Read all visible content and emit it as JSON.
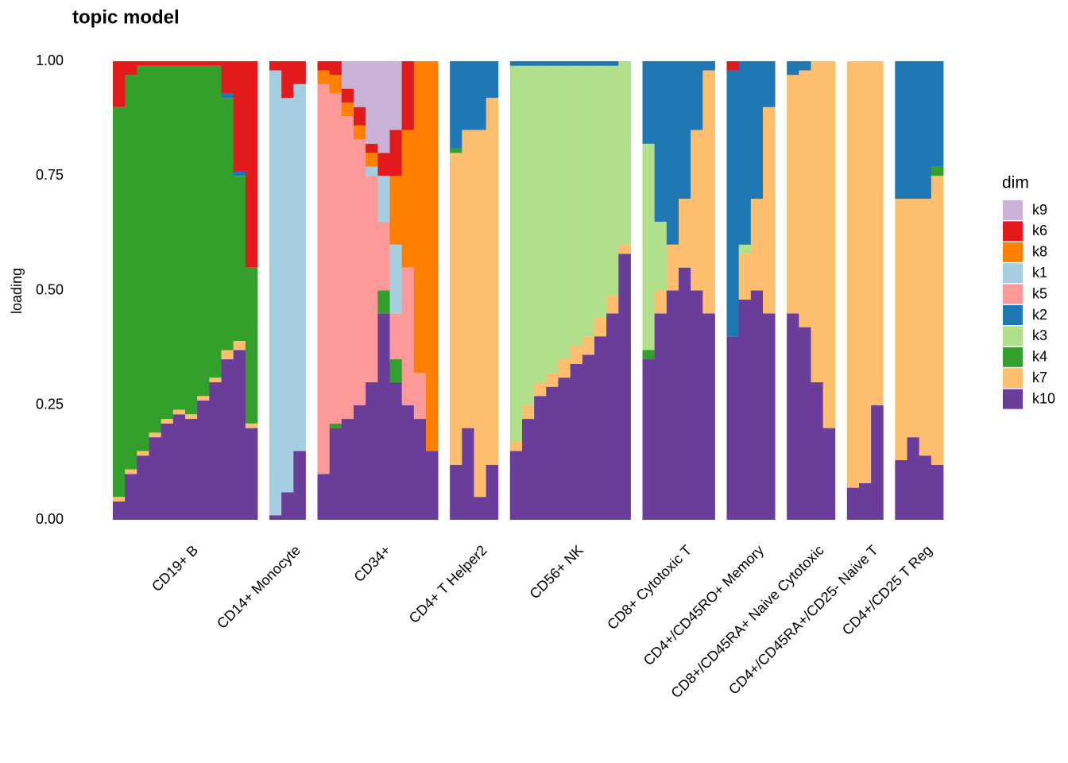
{
  "chart_data": {
    "type": "stacked_bar",
    "title": "topic model",
    "y_label": "loading",
    "legend_title": "dim",
    "ylim": [
      0,
      1
    ],
    "yticks": [
      {
        "value": 0,
        "label": "0.00"
      },
      {
        "value": 0.25,
        "label": "0.25"
      },
      {
        "value": 0.5,
        "label": "0.50"
      },
      {
        "value": 0.75,
        "label": "0.75"
      },
      {
        "value": 1,
        "label": "1.00"
      }
    ],
    "series": [
      {
        "name": "k9",
        "color": "#cab2d6"
      },
      {
        "name": "k6",
        "color": "#e31a1c"
      },
      {
        "name": "k8",
        "color": "#ff7f00"
      },
      {
        "name": "k1",
        "color": "#a6cee3"
      },
      {
        "name": "k5",
        "color": "#fb9a99"
      },
      {
        "name": "k2",
        "color": "#1f78b4"
      },
      {
        "name": "k3",
        "color": "#b2df8a"
      },
      {
        "name": "k4",
        "color": "#33a02c"
      },
      {
        "name": "k7",
        "color": "#fdbf6f"
      },
      {
        "name": "k10",
        "color": "#6a3d9a"
      }
    ],
    "groups": [
      {
        "label": "CD19+ B",
        "bars": [
          [
            0,
            0.1,
            0,
            0,
            0,
            0,
            0,
            0.85,
            0.01,
            0.04
          ],
          [
            0,
            0.03,
            0,
            0,
            0,
            0,
            0,
            0.86,
            0.01,
            0.1
          ],
          [
            0,
            0.01,
            0,
            0,
            0,
            0,
            0,
            0.84,
            0.01,
            0.14
          ],
          [
            0,
            0.01,
            0,
            0,
            0,
            0,
            0,
            0.8,
            0.01,
            0.18
          ],
          [
            0,
            0.01,
            0,
            0,
            0,
            0,
            0,
            0.77,
            0.01,
            0.21
          ],
          [
            0,
            0.01,
            0,
            0,
            0,
            0,
            0,
            0.75,
            0.01,
            0.23
          ],
          [
            0,
            0.01,
            0,
            0,
            0,
            0,
            0,
            0.76,
            0.01,
            0.22
          ],
          [
            0,
            0.01,
            0,
            0,
            0,
            0,
            0,
            0.72,
            0.01,
            0.26
          ],
          [
            0,
            0.01,
            0,
            0,
            0,
            0,
            0,
            0.68,
            0.01,
            0.3
          ],
          [
            0,
            0.07,
            0,
            0,
            0,
            0.01,
            0,
            0.55,
            0.02,
            0.35
          ],
          [
            0,
            0.24,
            0,
            0,
            0,
            0.01,
            0,
            0.36,
            0.02,
            0.37
          ],
          [
            0,
            0.45,
            0,
            0,
            0,
            0,
            0,
            0.34,
            0.01,
            0.2
          ]
        ]
      },
      {
        "label": "CD14+ Monocyte",
        "bars": [
          [
            0,
            0.02,
            0,
            0.97,
            0,
            0,
            0,
            0,
            0,
            0.01
          ],
          [
            0,
            0.08,
            0,
            0.86,
            0,
            0,
            0,
            0,
            0,
            0.06
          ],
          [
            0,
            0.05,
            0,
            0.8,
            0,
            0,
            0,
            0,
            0,
            0.15
          ]
        ]
      },
      {
        "label": "CD34+",
        "bars": [
          [
            0,
            0.02,
            0.03,
            0,
            0.85,
            0,
            0,
            0,
            0,
            0.1
          ],
          [
            0,
            0.03,
            0.04,
            0,
            0.72,
            0,
            0,
            0.01,
            0,
            0.2
          ],
          [
            0.06,
            0.03,
            0.03,
            0,
            0.66,
            0,
            0,
            0,
            0,
            0.22
          ],
          [
            0.1,
            0.04,
            0.03,
            0,
            0.58,
            0,
            0,
            0,
            0,
            0.25
          ],
          [
            0.18,
            0.02,
            0.03,
            0.02,
            0.45,
            0,
            0,
            0,
            0,
            0.3
          ],
          [
            0.2,
            0.05,
            0,
            0.1,
            0.15,
            0,
            0,
            0.05,
            0,
            0.45
          ],
          [
            0.15,
            0.1,
            0.15,
            0.15,
            0.1,
            0,
            0,
            0.05,
            0,
            0.3
          ],
          [
            0,
            0.15,
            0.3,
            0,
            0.3,
            0,
            0,
            0,
            0,
            0.25
          ],
          [
            0,
            0,
            0.68,
            0,
            0.1,
            0,
            0,
            0,
            0,
            0.22
          ],
          [
            0,
            0,
            0.85,
            0,
            0,
            0,
            0,
            0,
            0,
            0.15
          ]
        ]
      },
      {
        "label": "CD4+ T Helper2",
        "bars": [
          [
            0,
            0,
            0,
            0,
            0,
            0.19,
            0,
            0.01,
            0.68,
            0.12
          ],
          [
            0,
            0,
            0,
            0,
            0,
            0.15,
            0,
            0,
            0.65,
            0.2
          ],
          [
            0,
            0,
            0,
            0,
            0,
            0.15,
            0,
            0,
            0.8,
            0.05
          ],
          [
            0,
            0,
            0,
            0,
            0,
            0.08,
            0,
            0,
            0.8,
            0.12
          ]
        ]
      },
      {
        "label": "CD56+ NK",
        "bars": [
          [
            0,
            0,
            0,
            0,
            0,
            0.01,
            0.82,
            0,
            0.02,
            0.15
          ],
          [
            0,
            0,
            0,
            0,
            0,
            0.01,
            0.74,
            0,
            0.03,
            0.22
          ],
          [
            0,
            0,
            0,
            0,
            0,
            0.01,
            0.69,
            0,
            0.03,
            0.27
          ],
          [
            0,
            0,
            0,
            0,
            0,
            0.01,
            0.67,
            0,
            0.03,
            0.29
          ],
          [
            0,
            0,
            0,
            0,
            0,
            0.01,
            0.64,
            0,
            0.04,
            0.31
          ],
          [
            0,
            0,
            0,
            0,
            0,
            0.01,
            0.61,
            0,
            0.04,
            0.34
          ],
          [
            0,
            0,
            0,
            0,
            0,
            0.01,
            0.59,
            0,
            0.04,
            0.36
          ],
          [
            0,
            0,
            0,
            0,
            0,
            0.01,
            0.55,
            0,
            0.04,
            0.4
          ],
          [
            0,
            0,
            0,
            0,
            0,
            0.01,
            0.5,
            0,
            0.04,
            0.45
          ],
          [
            0,
            0,
            0,
            0,
            0,
            0,
            0.4,
            0,
            0.02,
            0.58
          ]
        ]
      },
      {
        "label": "CD8+ Cytotoxic T",
        "bars": [
          [
            0,
            0,
            0,
            0,
            0,
            0.18,
            0.45,
            0.02,
            0,
            0.35
          ],
          [
            0,
            0,
            0,
            0,
            0,
            0.35,
            0.15,
            0,
            0.05,
            0.45
          ],
          [
            0,
            0,
            0,
            0,
            0,
            0.4,
            0,
            0,
            0.1,
            0.5
          ],
          [
            0,
            0,
            0,
            0,
            0,
            0.3,
            0,
            0,
            0.15,
            0.55
          ],
          [
            0,
            0,
            0,
            0,
            0,
            0.15,
            0,
            0,
            0.35,
            0.5
          ],
          [
            0,
            0,
            0,
            0,
            0,
            0.02,
            0,
            0,
            0.53,
            0.45
          ]
        ]
      },
      {
        "label": "CD4+/CD45RO+ Memory",
        "bars": [
          [
            0,
            0.02,
            0,
            0,
            0,
            0.58,
            0,
            0,
            0,
            0.4
          ],
          [
            0,
            0,
            0,
            0,
            0,
            0.4,
            0.02,
            0,
            0.1,
            0.48
          ],
          [
            0,
            0,
            0,
            0,
            0,
            0.3,
            0,
            0,
            0.2,
            0.5
          ],
          [
            0,
            0,
            0,
            0,
            0,
            0.1,
            0,
            0,
            0.45,
            0.45
          ]
        ]
      },
      {
        "label": "CD8+/CD45RA+ Naive Cytotoxic",
        "bars": [
          [
            0,
            0,
            0,
            0,
            0,
            0.03,
            0,
            0,
            0.52,
            0.45
          ],
          [
            0,
            0,
            0,
            0,
            0,
            0.02,
            0,
            0,
            0.56,
            0.42
          ],
          [
            0,
            0,
            0,
            0,
            0,
            0,
            0,
            0,
            0.7,
            0.3
          ],
          [
            0,
            0,
            0,
            0,
            0,
            0,
            0,
            0,
            0.8,
            0.2
          ]
        ]
      },
      {
        "label": "CD4+/CD45RA+/CD25- Naive T",
        "bars": [
          [
            0,
            0,
            0,
            0,
            0,
            0,
            0,
            0,
            0.93,
            0.07
          ],
          [
            0,
            0,
            0,
            0,
            0,
            0,
            0,
            0,
            0.92,
            0.08
          ],
          [
            0,
            0,
            0,
            0,
            0,
            0,
            0,
            0,
            0.75,
            0.25
          ]
        ]
      },
      {
        "label": "CD4+/CD25 T Reg",
        "bars": [
          [
            0,
            0,
            0,
            0,
            0,
            0.3,
            0,
            0,
            0.57,
            0.13
          ],
          [
            0,
            0,
            0,
            0,
            0,
            0.3,
            0,
            0,
            0.52,
            0.18
          ],
          [
            0,
            0,
            0,
            0,
            0,
            0.3,
            0,
            0,
            0.56,
            0.14
          ],
          [
            0,
            0,
            0,
            0,
            0,
            0.23,
            0,
            0.02,
            0.63,
            0.12
          ]
        ]
      }
    ]
  }
}
